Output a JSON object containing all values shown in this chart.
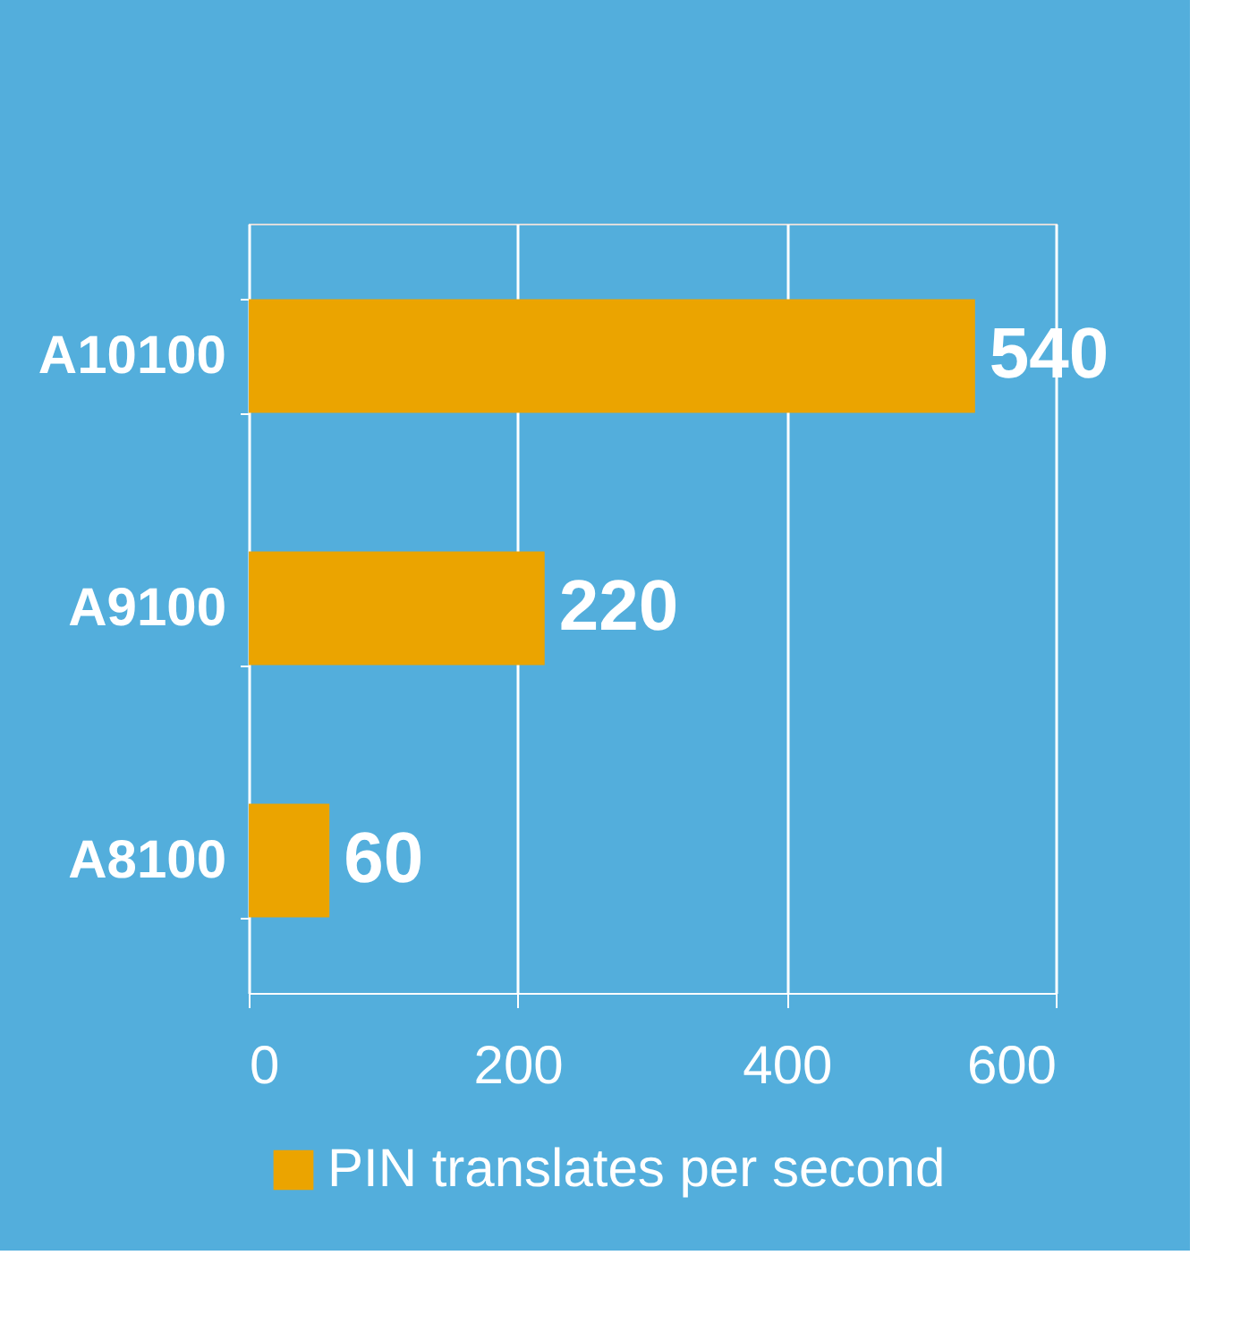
{
  "chart_data": {
    "type": "bar",
    "orientation": "horizontal",
    "categories": [
      "A10100",
      "A9100",
      "A8100"
    ],
    "series": [
      {
        "name": "PIN translates per second",
        "color": "#eba400",
        "values": [
          540,
          220,
          60
        ]
      }
    ],
    "data_labels": true,
    "xlim": [
      0,
      600
    ],
    "xticks": [
      0,
      200,
      400,
      600
    ],
    "grid": "x",
    "legend": "bottom"
  }
}
